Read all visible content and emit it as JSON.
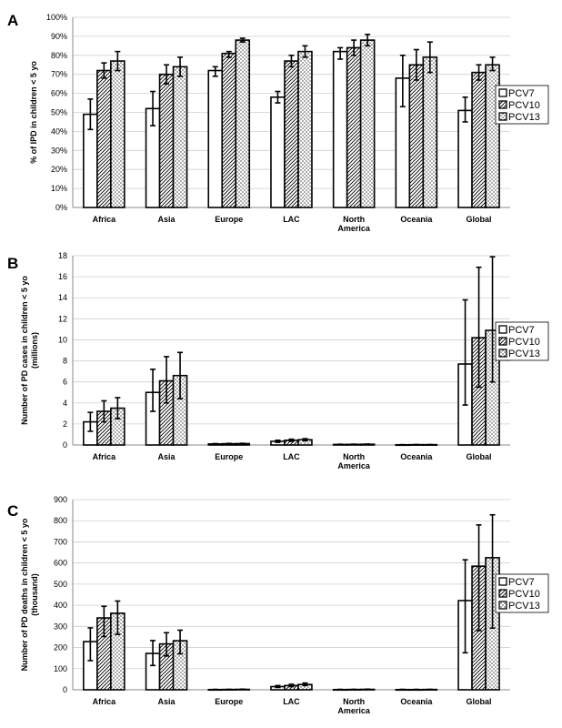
{
  "colors": {
    "PCV7": "#ffffff",
    "PCV10": "hatch",
    "PCV13": "dots",
    "stroke": "#000000",
    "grid": "#cfcfcf"
  },
  "chart_data": [
    {
      "type": "bar",
      "panel_label": "A",
      "ylabel": "% of IPD in children < 5 yo",
      "yticks": [
        "0%",
        "10%",
        "20%",
        "30%",
        "40%",
        "50%",
        "60%",
        "70%",
        "80%",
        "90%",
        "100%"
      ],
      "ylim": [
        0,
        100
      ],
      "grid": true,
      "legend_placement": "right",
      "categories": [
        "Africa",
        "Asia",
        "Europe",
        "LAC",
        "North|America",
        "Oceania",
        "Global"
      ],
      "series": [
        {
          "name": "PCV7",
          "values": [
            49,
            52,
            72,
            58,
            82,
            68,
            51
          ],
          "lo": [
            41,
            43,
            69,
            55,
            78,
            53,
            45
          ],
          "hi": [
            57,
            61,
            74,
            61,
            84,
            80,
            58
          ]
        },
        {
          "name": "PCV10",
          "values": [
            72,
            70,
            81,
            77,
            84,
            75,
            71
          ],
          "lo": [
            68,
            65,
            79,
            74,
            80,
            67,
            67
          ],
          "hi": [
            76,
            75,
            82,
            80,
            88,
            83,
            75
          ]
        },
        {
          "name": "PCV13",
          "values": [
            77,
            74,
            88,
            82,
            88,
            79,
            75
          ],
          "lo": [
            72,
            69,
            87,
            79,
            85,
            71,
            72
          ],
          "hi": [
            82,
            79,
            89,
            85,
            91,
            87,
            79
          ]
        }
      ]
    },
    {
      "type": "bar",
      "panel_label": "B",
      "ylabel": "Number of PD cases in children < 5 yo|(millions)",
      "yticks": [
        "0",
        "2",
        "4",
        "6",
        "8",
        "10",
        "12",
        "14",
        "16",
        "18"
      ],
      "ylim": [
        0,
        18
      ],
      "grid": true,
      "legend_placement": "right",
      "categories": [
        "Africa",
        "Asia",
        "Europe",
        "LAC",
        "North|America",
        "Oceania",
        "Global"
      ],
      "series": [
        {
          "name": "PCV7",
          "values": [
            2.2,
            5.0,
            0.1,
            0.35,
            0.05,
            0.02,
            7.7
          ],
          "lo": [
            1.3,
            3.2,
            0.07,
            0.25,
            0.03,
            0.01,
            3.8
          ],
          "hi": [
            3.1,
            7.2,
            0.13,
            0.45,
            0.07,
            0.03,
            13.8
          ]
        },
        {
          "name": "PCV10",
          "values": [
            3.2,
            6.1,
            0.12,
            0.45,
            0.06,
            0.03,
            10.2
          ],
          "lo": [
            2.2,
            4.0,
            0.09,
            0.35,
            0.04,
            0.02,
            5.5
          ],
          "hi": [
            4.2,
            8.4,
            0.15,
            0.55,
            0.08,
            0.04,
            16.9
          ]
        },
        {
          "name": "PCV13",
          "values": [
            3.5,
            6.6,
            0.13,
            0.5,
            0.07,
            0.03,
            10.9
          ],
          "lo": [
            2.5,
            4.4,
            0.1,
            0.4,
            0.05,
            0.02,
            6.0
          ],
          "hi": [
            4.5,
            8.8,
            0.16,
            0.6,
            0.09,
            0.04,
            17.9
          ]
        }
      ]
    },
    {
      "type": "bar",
      "panel_label": "C",
      "ylabel": "Number of PD deaths in children < 5 yo|(thousand)",
      "yticks": [
        "0",
        "100",
        "200",
        "300",
        "400",
        "500",
        "600",
        "700",
        "800",
        "900"
      ],
      "ylim": [
        0,
        900
      ],
      "grid": true,
      "legend_placement": "right",
      "categories": [
        "Africa",
        "Asia",
        "Europe",
        "LAC",
        "North|America",
        "Oceania",
        "Global"
      ],
      "series": [
        {
          "name": "PCV7",
          "values": [
            228,
            172,
            1,
            15,
            1,
            1,
            422
          ],
          "lo": [
            138,
            115,
            0.5,
            11,
            0.5,
            0.5,
            175
          ],
          "hi": [
            293,
            233,
            2,
            20,
            2,
            2,
            615
          ]
        },
        {
          "name": "PCV10",
          "values": [
            340,
            217,
            1.5,
            20,
            1.5,
            1,
            585
          ],
          "lo": [
            252,
            160,
            1,
            15,
            1,
            0.5,
            280
          ],
          "hi": [
            395,
            270,
            2,
            26,
            2,
            2,
            780
          ]
        },
        {
          "name": "PCV13",
          "values": [
            362,
            232,
            2,
            25,
            2,
            1.5,
            625
          ],
          "lo": [
            262,
            170,
            1,
            20,
            1,
            1,
            292
          ],
          "hi": [
            420,
            282,
            3,
            32,
            3,
            2,
            828
          ]
        }
      ]
    }
  ]
}
